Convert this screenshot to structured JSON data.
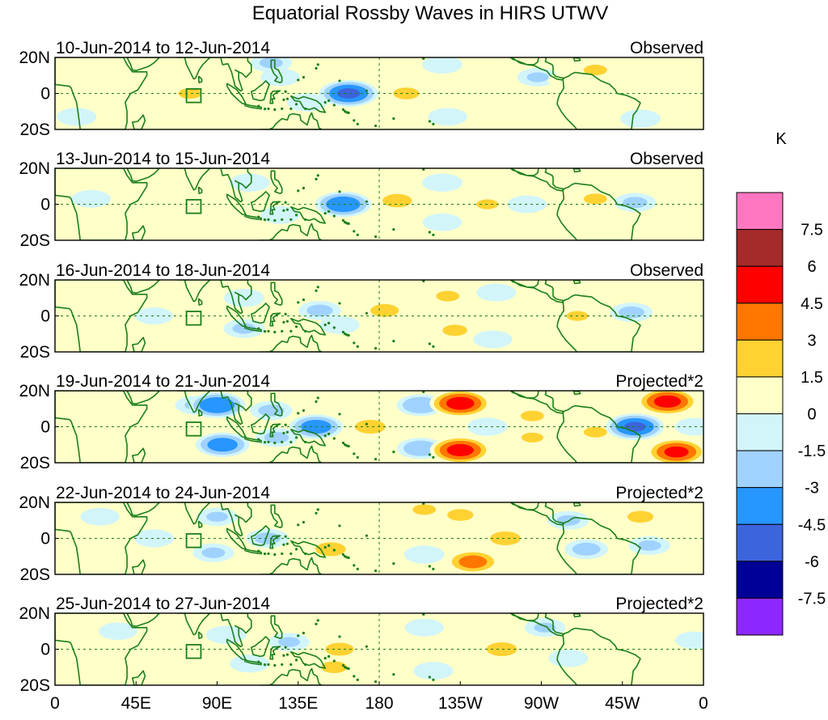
{
  "chart_data": {
    "type": "heatmap",
    "title": "Equatorial Rossby Waves in HIRS UTWV",
    "variable": "HIRS UTWV",
    "units": "K",
    "x_ticks": [
      "0",
      "45E",
      "90E",
      "135E",
      "180",
      "135W",
      "90W",
      "45W",
      "0"
    ],
    "y_ticks": [
      "20N",
      "0",
      "20S"
    ],
    "xlim": [
      0,
      360
    ],
    "ylim": [
      -20,
      20
    ],
    "colorbar": {
      "label": "K",
      "levels": [
        "7.5",
        "6",
        "4.5",
        "3",
        "1.5",
        "0",
        "-1.5",
        "-3",
        "-4.5",
        "-6",
        "-7.5"
      ],
      "colors": [
        "#ff77c0",
        "#a52a2a",
        "#ff0000",
        "#ff7700",
        "#ffd232",
        "#ffffc8",
        "#d2f5fa",
        "#a0d2ff",
        "#2896ff",
        "#3c64dc",
        "#000096",
        "#8c28ff"
      ]
    },
    "panels": [
      {
        "period": "10-Jun-2014 to 12-Jun-2014",
        "kind": "Observed",
        "features": [
          {
            "lon": 45,
            "lat": 14,
            "v": 1.3
          },
          {
            "lon": 60,
            "lat": 12,
            "v": 0.9
          },
          {
            "lon": 52,
            "lat": -7,
            "v": 1.4
          },
          {
            "lon": 75,
            "lat": 0,
            "v": 1.6
          },
          {
            "lon": 120,
            "lat": 17,
            "v": -1.6
          },
          {
            "lon": 125,
            "lat": 9,
            "v": -1.2
          },
          {
            "lon": 140,
            "lat": -5,
            "v": -1.4
          },
          {
            "lon": 163,
            "lat": 0,
            "v": -4.7
          },
          {
            "lon": 195,
            "lat": 0,
            "v": 1.8
          },
          {
            "lon": 215,
            "lat": 16,
            "v": -1.3
          },
          {
            "lon": 218,
            "lat": -13,
            "v": -1.2
          },
          {
            "lon": 238,
            "lat": -2,
            "v": 1.4
          },
          {
            "lon": 268,
            "lat": 9,
            "v": -1.5
          },
          {
            "lon": 285,
            "lat": 7,
            "v": 1.4
          },
          {
            "lon": 300,
            "lat": 13,
            "v": 1.6
          },
          {
            "lon": 325,
            "lat": -14,
            "v": -1.4
          },
          {
            "lon": 12,
            "lat": -13,
            "v": -1.3
          },
          {
            "lon": 350,
            "lat": 3,
            "v": 0.8
          }
        ]
      },
      {
        "period": "13-Jun-2014 to 15-Jun-2014",
        "kind": "Observed",
        "features": [
          {
            "lon": 60,
            "lat": 14,
            "v": 0.8
          },
          {
            "lon": 20,
            "lat": 3,
            "v": -1.2
          },
          {
            "lon": 108,
            "lat": 12,
            "v": -1.4
          },
          {
            "lon": 125,
            "lat": -6,
            "v": -1.2
          },
          {
            "lon": 160,
            "lat": 0,
            "v": -4.2
          },
          {
            "lon": 190,
            "lat": 2,
            "v": 2.1
          },
          {
            "lon": 215,
            "lat": 12,
            "v": -1.4
          },
          {
            "lon": 215,
            "lat": -10,
            "v": -1.2
          },
          {
            "lon": 240,
            "lat": 0,
            "v": 1.5
          },
          {
            "lon": 262,
            "lat": 0,
            "v": -1.2
          },
          {
            "lon": 300,
            "lat": 3,
            "v": 1.6
          },
          {
            "lon": 322,
            "lat": 1,
            "v": -1.7
          },
          {
            "lon": 338,
            "lat": 10,
            "v": 0.9
          }
        ]
      },
      {
        "period": "16-Jun-2014 to 18-Jun-2014",
        "kind": "Observed",
        "features": [
          {
            "lon": 55,
            "lat": 0,
            "v": -1.0
          },
          {
            "lon": 105,
            "lat": 10,
            "v": -1.4
          },
          {
            "lon": 105,
            "lat": -7,
            "v": -1.6
          },
          {
            "lon": 147,
            "lat": 3,
            "v": -1.8
          },
          {
            "lon": 158,
            "lat": -5,
            "v": -1.3
          },
          {
            "lon": 183,
            "lat": 3,
            "v": 2.0
          },
          {
            "lon": 218,
            "lat": 11,
            "v": 1.6
          },
          {
            "lon": 222,
            "lat": -8,
            "v": 1.7
          },
          {
            "lon": 245,
            "lat": 13,
            "v": -1.3
          },
          {
            "lon": 243,
            "lat": -13,
            "v": -1.2
          },
          {
            "lon": 290,
            "lat": 0,
            "v": 1.5
          },
          {
            "lon": 320,
            "lat": 2,
            "v": -1.8
          },
          {
            "lon": 340,
            "lat": 6,
            "v": 0.8
          }
        ]
      },
      {
        "period": "19-Jun-2014 to 21-Jun-2014",
        "kind": "Projected*2",
        "features": [
          {
            "lon": 22,
            "lat": 14,
            "v": 1.4
          },
          {
            "lon": 30,
            "lat": -10,
            "v": 0.9
          },
          {
            "lon": 78,
            "lat": 12,
            "v": -1.5
          },
          {
            "lon": 70,
            "lat": 0,
            "v": 1.2
          },
          {
            "lon": 90,
            "lat": 12,
            "v": -4.3
          },
          {
            "lon": 93,
            "lat": -10,
            "v": -3.8
          },
          {
            "lon": 120,
            "lat": 9,
            "v": -1.8
          },
          {
            "lon": 123,
            "lat": -6,
            "v": -1.7
          },
          {
            "lon": 145,
            "lat": 0,
            "v": -3.8
          },
          {
            "lon": 175,
            "lat": 0,
            "v": 2.2
          },
          {
            "lon": 203,
            "lat": 12,
            "v": -2.8
          },
          {
            "lon": 203,
            "lat": -12,
            "v": -2.6
          },
          {
            "lon": 225,
            "lat": 13,
            "v": 5.1
          },
          {
            "lon": 225,
            "lat": -13,
            "v": 5.0
          },
          {
            "lon": 240,
            "lat": 0,
            "v": -1.4
          },
          {
            "lon": 265,
            "lat": 6,
            "v": 1.6
          },
          {
            "lon": 265,
            "lat": -6,
            "v": 1.5
          },
          {
            "lon": 300,
            "lat": -3,
            "v": 1.6
          },
          {
            "lon": 322,
            "lat": 0,
            "v": -4.6
          },
          {
            "lon": 340,
            "lat": 14,
            "v": 5.0
          },
          {
            "lon": 345,
            "lat": -14,
            "v": 4.8
          },
          {
            "lon": 355,
            "lat": 0,
            "v": -1.2
          }
        ]
      },
      {
        "period": "22-Jun-2014 to 24-Jun-2014",
        "kind": "Projected*2",
        "features": [
          {
            "lon": 25,
            "lat": 12,
            "v": -1.2
          },
          {
            "lon": 55,
            "lat": 0,
            "v": -1.3
          },
          {
            "lon": 90,
            "lat": 12,
            "v": -1.5
          },
          {
            "lon": 88,
            "lat": -8,
            "v": -1.6
          },
          {
            "lon": 118,
            "lat": 0,
            "v": -1.8
          },
          {
            "lon": 153,
            "lat": 12,
            "v": 1.3
          },
          {
            "lon": 153,
            "lat": -6,
            "v": 2.2
          },
          {
            "lon": 205,
            "lat": 16,
            "v": 1.6
          },
          {
            "lon": 205,
            "lat": -9,
            "v": -1.4
          },
          {
            "lon": 225,
            "lat": 13,
            "v": 1.8
          },
          {
            "lon": 232,
            "lat": -13,
            "v": 3.6
          },
          {
            "lon": 250,
            "lat": 0,
            "v": 2.2
          },
          {
            "lon": 285,
            "lat": 10,
            "v": -1.6
          },
          {
            "lon": 295,
            "lat": -6,
            "v": -2.0
          },
          {
            "lon": 325,
            "lat": 12,
            "v": 1.8
          },
          {
            "lon": 330,
            "lat": -4,
            "v": -1.6
          },
          {
            "lon": 355,
            "lat": 0,
            "v": 1.3
          }
        ]
      },
      {
        "period": "25-Jun-2014 to 27-Jun-2014",
        "kind": "Projected*2",
        "features": [
          {
            "lon": 35,
            "lat": 10,
            "v": -1.1
          },
          {
            "lon": 65,
            "lat": -2,
            "v": 1.0
          },
          {
            "lon": 95,
            "lat": 8,
            "v": -1.4
          },
          {
            "lon": 108,
            "lat": -8,
            "v": -1.3
          },
          {
            "lon": 130,
            "lat": 4,
            "v": -1.5
          },
          {
            "lon": 158,
            "lat": 0,
            "v": 2.0
          },
          {
            "lon": 155,
            "lat": -10,
            "v": 1.8
          },
          {
            "lon": 205,
            "lat": 12,
            "v": -1.2
          },
          {
            "lon": 210,
            "lat": -12,
            "v": -1.3
          },
          {
            "lon": 248,
            "lat": 0,
            "v": 2.2
          },
          {
            "lon": 272,
            "lat": 12,
            "v": -1.5
          },
          {
            "lon": 285,
            "lat": -5,
            "v": -1.3
          },
          {
            "lon": 318,
            "lat": 12,
            "v": 1.4
          },
          {
            "lon": 335,
            "lat": -8,
            "v": 1.2
          },
          {
            "lon": 355,
            "lat": 5,
            "v": -1.1
          }
        ]
      }
    ]
  }
}
